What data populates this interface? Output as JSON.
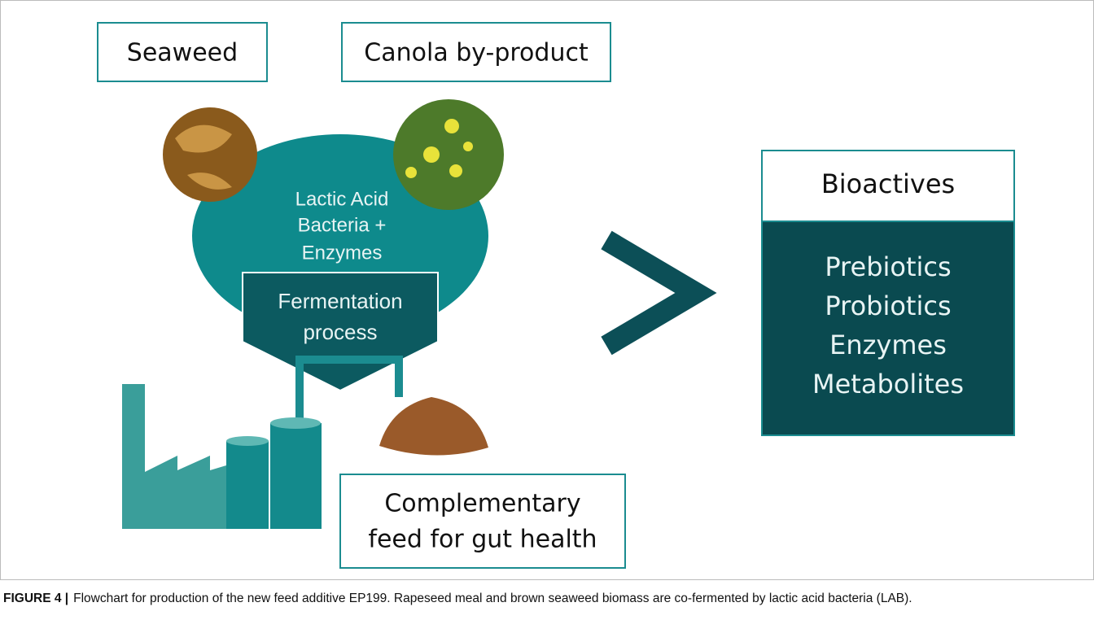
{
  "inputs": {
    "seaweed": "Seaweed",
    "canola": "Canola by-product"
  },
  "mix_label": [
    "Lactic Acid",
    "Bacteria +",
    "Enzymes"
  ],
  "process_label": [
    "Fermentation",
    "process"
  ],
  "product_label": [
    "Complementary",
    "feed for gut health"
  ],
  "bioactives": {
    "title": "Bioactives",
    "items": [
      "Prebiotics",
      "Probiotics",
      "Enzymes",
      "Metabolites"
    ]
  },
  "caption": {
    "label": "FIGURE 4 |",
    "text": "Flowchart for production of the new feed additive EP199. Rapeseed meal and brown seaweed biomass are co-fermented by lactic acid bacteria (LAB)."
  }
}
